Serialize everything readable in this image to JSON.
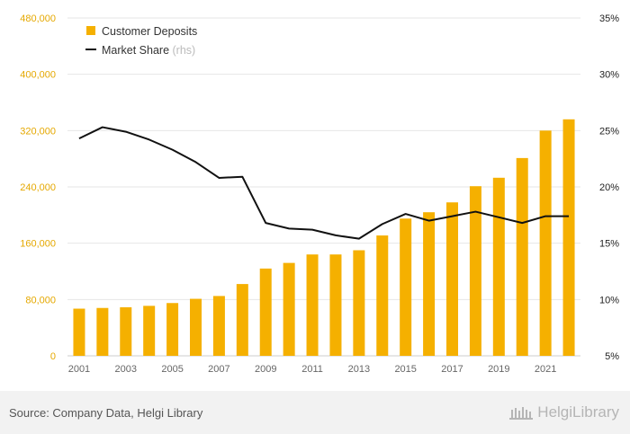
{
  "colors": {
    "bar": "#F5B000",
    "line": "#111111",
    "left_axis_text": "#E5A800",
    "right_axis_text": "#222222",
    "grid": "#e6e6e6",
    "x_axis_text": "#666666"
  },
  "legend": {
    "deposits": "Customer Deposits",
    "market_share": "Market Share",
    "market_share_suffix": "(rhs)"
  },
  "footer": {
    "source": "Source: Company Data, Helgi Library",
    "brand": "HelgiLibrary"
  },
  "chart_data": {
    "type": "bar",
    "legend_position": "top-left",
    "grid": true,
    "categories": [
      "2001",
      "2002",
      "2003",
      "2004",
      "2005",
      "2006",
      "2007",
      "2008",
      "2009",
      "2010",
      "2011",
      "2012",
      "2013",
      "2014",
      "2015",
      "2016",
      "2017",
      "2018",
      "2019",
      "2020",
      "2021",
      "2022"
    ],
    "x_tick_labels": [
      "2001",
      "2003",
      "2005",
      "2007",
      "2009",
      "2011",
      "2013",
      "2015",
      "2017",
      "2019",
      "2021"
    ],
    "y_left_ticks": [
      "0",
      "80,000",
      "160,000",
      "240,000",
      "320,000",
      "400,000",
      "480,000"
    ],
    "y_right_ticks": [
      "5%",
      "10%",
      "15%",
      "20%",
      "25%",
      "30%",
      "35%"
    ],
    "ylim_left": [
      0,
      480000
    ],
    "ylim_right": [
      5,
      35
    ],
    "series": [
      {
        "name": "Customer Deposits",
        "type": "bar",
        "axis": "left",
        "values": [
          67000,
          68000,
          69000,
          71000,
          75000,
          81000,
          85000,
          102000,
          124000,
          132000,
          144000,
          144000,
          150000,
          171000,
          195000,
          204000,
          218000,
          241000,
          253000,
          281000,
          320000,
          336000
        ]
      },
      {
        "name": "Market Share",
        "type": "line",
        "axis": "right",
        "values": [
          24.3,
          25.3,
          24.9,
          24.2,
          23.3,
          22.2,
          20.8,
          20.9,
          16.8,
          16.3,
          16.2,
          15.7,
          15.4,
          16.7,
          17.6,
          17.0,
          17.4,
          17.8,
          17.3,
          16.8,
          17.4,
          17.4
        ]
      }
    ]
  }
}
